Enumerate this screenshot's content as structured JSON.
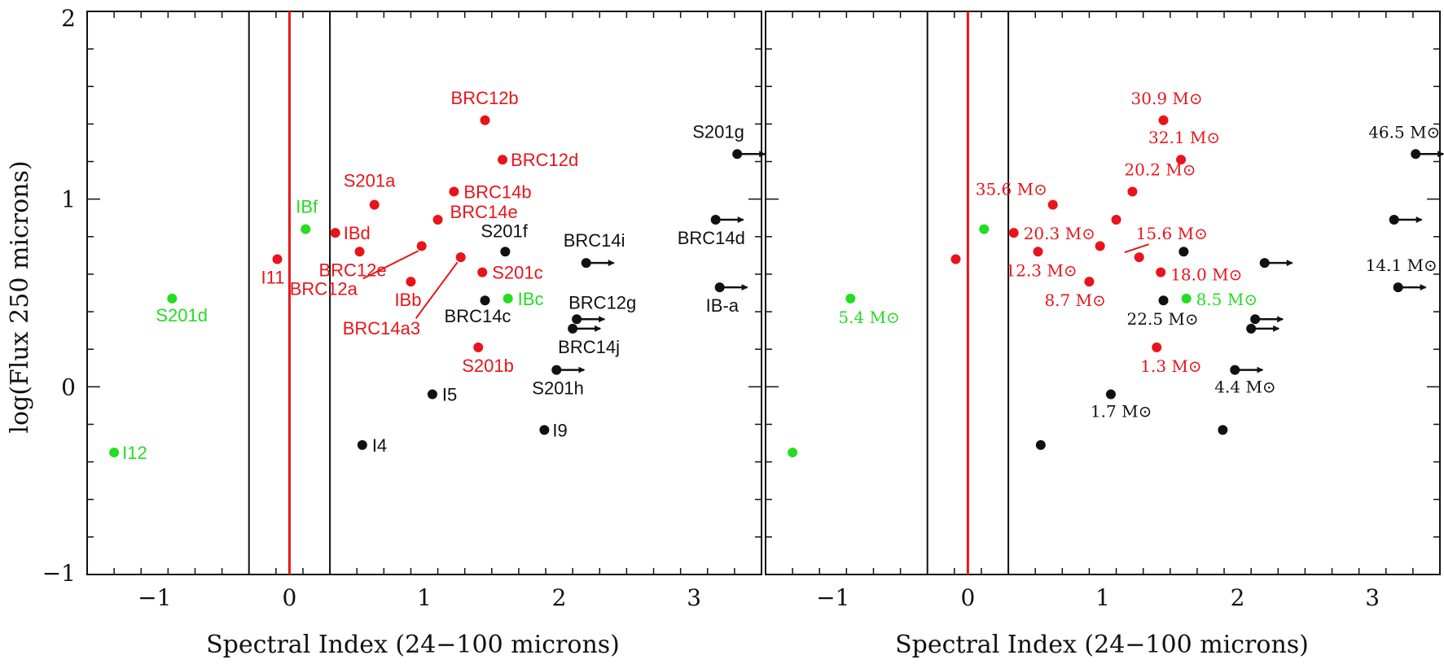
{
  "colors": {
    "red": "#e8141a",
    "black": "#111111",
    "green": "#22dd22"
  },
  "chart_data": [
    {
      "type": "scatter",
      "panel": "left",
      "xlabel": "Spectral Index (24−100 microns)",
      "ylabel": "log(Flux 250 microns)",
      "xlim": [
        -1.5,
        3.5
      ],
      "ylim": [
        -1,
        2
      ],
      "xticks": [
        -1,
        0,
        1,
        2,
        3
      ],
      "xtick_labels": [
        "−1",
        "0",
        "1",
        "2",
        "3"
      ],
      "yticks": [
        -1,
        0,
        1,
        2
      ],
      "ytick_labels": [
        "−1",
        "0",
        "1",
        "2"
      ],
      "vlines": [
        {
          "x": -0.3,
          "color": "black"
        },
        {
          "x": 0.0,
          "color": "red"
        },
        {
          "x": 0.3,
          "color": "black"
        }
      ],
      "points": [
        {
          "x": -1.3,
          "y": -0.35,
          "label": "I12",
          "color": "green",
          "arrow": false
        },
        {
          "x": -0.87,
          "y": 0.47,
          "label": "S201d",
          "color": "green",
          "arrow": false
        },
        {
          "x": -0.09,
          "y": 0.68,
          "label": "I11",
          "color": "red",
          "arrow": false
        },
        {
          "x": 0.12,
          "y": 0.84,
          "label": "IBf",
          "color": "green",
          "arrow": false
        },
        {
          "x": 0.34,
          "y": 0.82,
          "label": "IBd",
          "color": "red",
          "arrow": false
        },
        {
          "x": 0.52,
          "y": 0.72,
          "label": "BRC12e",
          "color": "red",
          "arrow": false
        },
        {
          "x": 0.63,
          "y": 0.97,
          "label": "S201a",
          "color": "red",
          "arrow": false
        },
        {
          "x": 0.9,
          "y": 0.56,
          "label": "IBb",
          "color": "red",
          "arrow": false
        },
        {
          "x": 0.98,
          "y": 0.75,
          "label": "BRC12a",
          "color": "red",
          "arrow": false
        },
        {
          "x": 1.1,
          "y": 0.89,
          "label": "BRC14e",
          "color": "red",
          "arrow": false
        },
        {
          "x": 1.22,
          "y": 1.04,
          "label": "BRC14b",
          "color": "red",
          "arrow": false
        },
        {
          "x": 1.27,
          "y": 0.69,
          "label": "BRC14a3",
          "color": "red",
          "arrow": false
        },
        {
          "x": 1.4,
          "y": 0.21,
          "label": "S201b",
          "color": "red",
          "arrow": false
        },
        {
          "x": 1.43,
          "y": 0.61,
          "label": "S201c",
          "color": "red",
          "arrow": false
        },
        {
          "x": 1.45,
          "y": 1.42,
          "label": "BRC12b",
          "color": "red",
          "arrow": false
        },
        {
          "x": 1.58,
          "y": 1.21,
          "label": "BRC12d",
          "color": "red",
          "arrow": false
        },
        {
          "x": 1.45,
          "y": 0.46,
          "label": "BRC14c",
          "color": "black",
          "arrow": false
        },
        {
          "x": 1.6,
          "y": 0.72,
          "label": "S201f",
          "color": "black",
          "arrow": false
        },
        {
          "x": 1.62,
          "y": 0.47,
          "label": "IBc",
          "color": "green",
          "arrow": false
        },
        {
          "x": 1.06,
          "y": -0.04,
          "label": "I5",
          "color": "black",
          "arrow": false
        },
        {
          "x": 0.54,
          "y": -0.31,
          "label": "I4",
          "color": "black",
          "arrow": false
        },
        {
          "x": 1.89,
          "y": -0.23,
          "label": "I9",
          "color": "black",
          "arrow": false
        },
        {
          "x": 1.98,
          "y": 0.09,
          "label": "S201h",
          "color": "black",
          "arrow": true
        },
        {
          "x": 2.1,
          "y": 0.31,
          "label": "BRC14j",
          "color": "black",
          "arrow": true
        },
        {
          "x": 2.13,
          "y": 0.36,
          "label": "BRC12g",
          "color": "black",
          "arrow": true
        },
        {
          "x": 2.2,
          "y": 0.66,
          "label": "BRC14i",
          "color": "black",
          "arrow": true
        },
        {
          "x": 3.16,
          "y": 0.89,
          "label": "BRC14d",
          "color": "black",
          "arrow": true
        },
        {
          "x": 3.19,
          "y": 0.53,
          "label": "IB-a",
          "color": "black",
          "arrow": true
        },
        {
          "x": 3.32,
          "y": 1.24,
          "label": "S201g",
          "color": "black",
          "arrow": true
        }
      ]
    },
    {
      "type": "scatter",
      "panel": "right",
      "xlabel": "Spectral Index (24−100 microns)",
      "xlim": [
        -1.5,
        3.5
      ],
      "ylim": [
        -1,
        2
      ],
      "xticks": [
        -1,
        0,
        1,
        2,
        3
      ],
      "xtick_labels": [
        "−1",
        "0",
        "1",
        "2",
        "3"
      ],
      "vlines": [
        {
          "x": -0.3,
          "color": "black"
        },
        {
          "x": 0.0,
          "color": "red"
        },
        {
          "x": 0.3,
          "color": "black"
        }
      ],
      "points": [
        {
          "x": -1.3,
          "y": -0.35,
          "label": "",
          "color": "green",
          "arrow": false
        },
        {
          "x": -0.87,
          "y": 0.47,
          "label": "5.4 M⊙",
          "color": "green",
          "arrow": false
        },
        {
          "x": -0.09,
          "y": 0.68,
          "label": "",
          "color": "red",
          "arrow": false
        },
        {
          "x": 0.12,
          "y": 0.84,
          "label": "",
          "color": "green",
          "arrow": false
        },
        {
          "x": 0.34,
          "y": 0.82,
          "label": "20.3 M⊙",
          "color": "red",
          "arrow": false
        },
        {
          "x": 0.52,
          "y": 0.72,
          "label": "12.3 M⊙",
          "color": "red",
          "arrow": false
        },
        {
          "x": 0.63,
          "y": 0.97,
          "label": "35.6 M⊙",
          "color": "red",
          "arrow": false
        },
        {
          "x": 0.9,
          "y": 0.56,
          "label": "8.7 M⊙",
          "color": "red",
          "arrow": false
        },
        {
          "x": 0.98,
          "y": 0.75,
          "label": "",
          "color": "red",
          "arrow": false
        },
        {
          "x": 1.1,
          "y": 0.89,
          "label": "",
          "color": "red",
          "arrow": false
        },
        {
          "x": 1.22,
          "y": 1.04,
          "label": "20.2 M⊙",
          "color": "red",
          "arrow": false
        },
        {
          "x": 1.27,
          "y": 0.69,
          "label": "15.6 M⊙",
          "color": "red",
          "arrow": false
        },
        {
          "x": 1.4,
          "y": 0.21,
          "label": "1.3 M⊙",
          "color": "red",
          "arrow": false
        },
        {
          "x": 1.43,
          "y": 0.61,
          "label": "18.0 M⊙",
          "color": "red",
          "arrow": false
        },
        {
          "x": 1.45,
          "y": 1.42,
          "label": "30.9 M⊙",
          "color": "red",
          "arrow": false
        },
        {
          "x": 1.58,
          "y": 1.21,
          "label": "32.1 M⊙",
          "color": "red",
          "arrow": false
        },
        {
          "x": 1.45,
          "y": 0.46,
          "label": "22.5 M⊙",
          "color": "black",
          "arrow": false
        },
        {
          "x": 1.6,
          "y": 0.72,
          "label": "",
          "color": "black",
          "arrow": false
        },
        {
          "x": 1.62,
          "y": 0.47,
          "label": "8.5 M⊙",
          "color": "green",
          "arrow": false
        },
        {
          "x": 1.06,
          "y": -0.04,
          "label": "1.7 M⊙",
          "color": "black",
          "arrow": false
        },
        {
          "x": 0.54,
          "y": -0.31,
          "label": "",
          "color": "black",
          "arrow": false
        },
        {
          "x": 1.89,
          "y": -0.23,
          "label": "",
          "color": "black",
          "arrow": false
        },
        {
          "x": 1.98,
          "y": 0.09,
          "label": "4.4 M⊙",
          "color": "black",
          "arrow": true
        },
        {
          "x": 2.1,
          "y": 0.31,
          "label": "",
          "color": "black",
          "arrow": true
        },
        {
          "x": 2.13,
          "y": 0.36,
          "label": "",
          "color": "black",
          "arrow": true
        },
        {
          "x": 2.2,
          "y": 0.66,
          "label": "",
          "color": "black",
          "arrow": true
        },
        {
          "x": 3.16,
          "y": 0.89,
          "label": "",
          "color": "black",
          "arrow": true
        },
        {
          "x": 3.19,
          "y": 0.53,
          "label": "14.1 M⊙",
          "color": "black",
          "arrow": true
        },
        {
          "x": 3.32,
          "y": 1.24,
          "label": "46.5 M⊙",
          "color": "black",
          "arrow": true
        }
      ]
    }
  ]
}
